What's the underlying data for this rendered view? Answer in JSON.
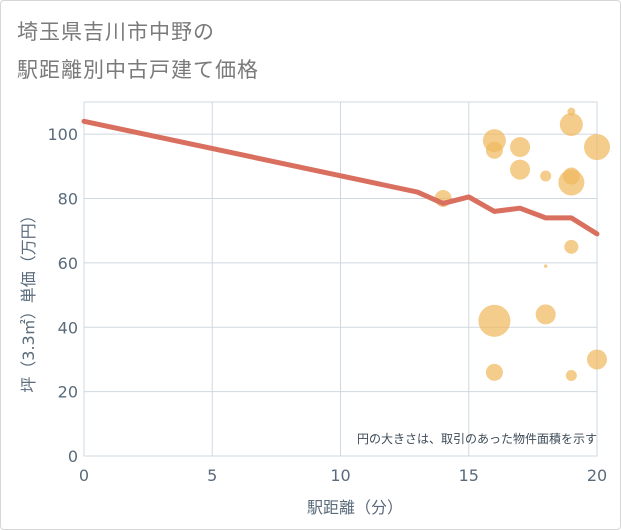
{
  "title_lines": [
    "埼玉県吉川市中野の",
    "駅距離別中古戸建て価格"
  ],
  "chart_data": {
    "type": "scatter+line",
    "xlabel": "駅距離（分）",
    "ylabel": "坪（3.3㎡）単価（万円）",
    "xlim": [
      0,
      20
    ],
    "ylim": [
      0,
      110
    ],
    "xticks": [
      0,
      5,
      10,
      15,
      20
    ],
    "yticks": [
      0,
      20,
      40,
      60,
      80,
      100
    ],
    "grid": true,
    "annotation": "円の大きさは、取引のあった物件面積を示す",
    "colors": {
      "line": "#d9705f",
      "bubble": "#f0b85e",
      "grid": "#cfd8e0",
      "axis_text": "#5a6b7b"
    },
    "trend_line": {
      "x": [
        0,
        13,
        14,
        15,
        16,
        17,
        18,
        19,
        20
      ],
      "y": [
        104,
        82,
        78.5,
        80.5,
        76,
        77,
        74,
        74,
        69
      ]
    },
    "bubbles": [
      {
        "x": 14,
        "y": 80,
        "size": 5
      },
      {
        "x": 16,
        "y": 98,
        "size": 7
      },
      {
        "x": 16,
        "y": 95,
        "size": 5
      },
      {
        "x": 16,
        "y": 42,
        "size": 10
      },
      {
        "x": 16,
        "y": 26,
        "size": 5
      },
      {
        "x": 17,
        "y": 96,
        "size": 6
      },
      {
        "x": 17,
        "y": 89,
        "size": 6
      },
      {
        "x": 18,
        "y": 87,
        "size": 3
      },
      {
        "x": 18,
        "y": 59,
        "size": 0.5
      },
      {
        "x": 18,
        "y": 44,
        "size": 6
      },
      {
        "x": 19,
        "y": 107,
        "size": 2
      },
      {
        "x": 19,
        "y": 103,
        "size": 7
      },
      {
        "x": 19,
        "y": 87,
        "size": 5
      },
      {
        "x": 19,
        "y": 85,
        "size": 8
      },
      {
        "x": 19,
        "y": 65,
        "size": 4
      },
      {
        "x": 19,
        "y": 25,
        "size": 3
      },
      {
        "x": 20,
        "y": 96,
        "size": 8
      },
      {
        "x": 20,
        "y": 30,
        "size": 6
      }
    ]
  }
}
